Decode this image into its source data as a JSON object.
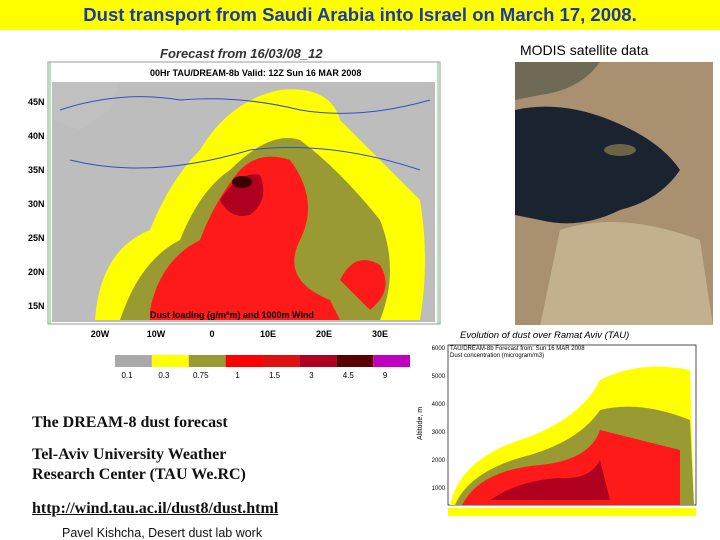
{
  "slide": {
    "title": "Dust transport from Saudi Arabia into Israel on March 17, 2008.",
    "satellite_caption": "MODIS satellite data",
    "forecast_map": {
      "header": "Forecast from 16/03/08_12",
      "subheader": "00Hr TAU/DREAM-8b Valid: 12Z Sun 16 MAR 2008",
      "lat_labels": [
        "45N",
        "40N",
        "35N",
        "30N",
        "25N",
        "20N",
        "15N"
      ],
      "lon_labels": [
        "20W",
        "10W",
        "0",
        "10E",
        "20E",
        "30E"
      ],
      "footer": "Dust loading (g/m*m) and 1000m Wind",
      "colorbar": {
        "labels": [
          "0.1",
          "0.3",
          "0.75",
          "1",
          "1.5",
          "3",
          "4.5",
          "9"
        ],
        "colors": [
          "#a9a9a9",
          "#ffff00",
          "#9a9a35",
          "#ff0000",
          "#e01010",
          "#b00020",
          "#5a0000",
          "#c000c0"
        ]
      }
    },
    "profile_chart": {
      "title": "Evolution of dust over Ramat Aviv (TAU)",
      "line1": "TAU/DREAM-8b Forecast from: Sun 16 MAR 2008",
      "line2": "Dust concentration (microgram/m3)",
      "y_label": "Altitude, m",
      "yticks": [
        "6000",
        "5000",
        "4000",
        "3000",
        "2000",
        "1000"
      ]
    },
    "text_block": {
      "line1": "The DREAM-8 dust forecast",
      "line2": "Tel-Aviv University Weather",
      "line3": "Research Center (TAU We.RC)",
      "link": "http://wind.tau.ac.il/dust8/dust.html",
      "credit": "Pavel Kishcha,  Desert dust lab work"
    }
  }
}
